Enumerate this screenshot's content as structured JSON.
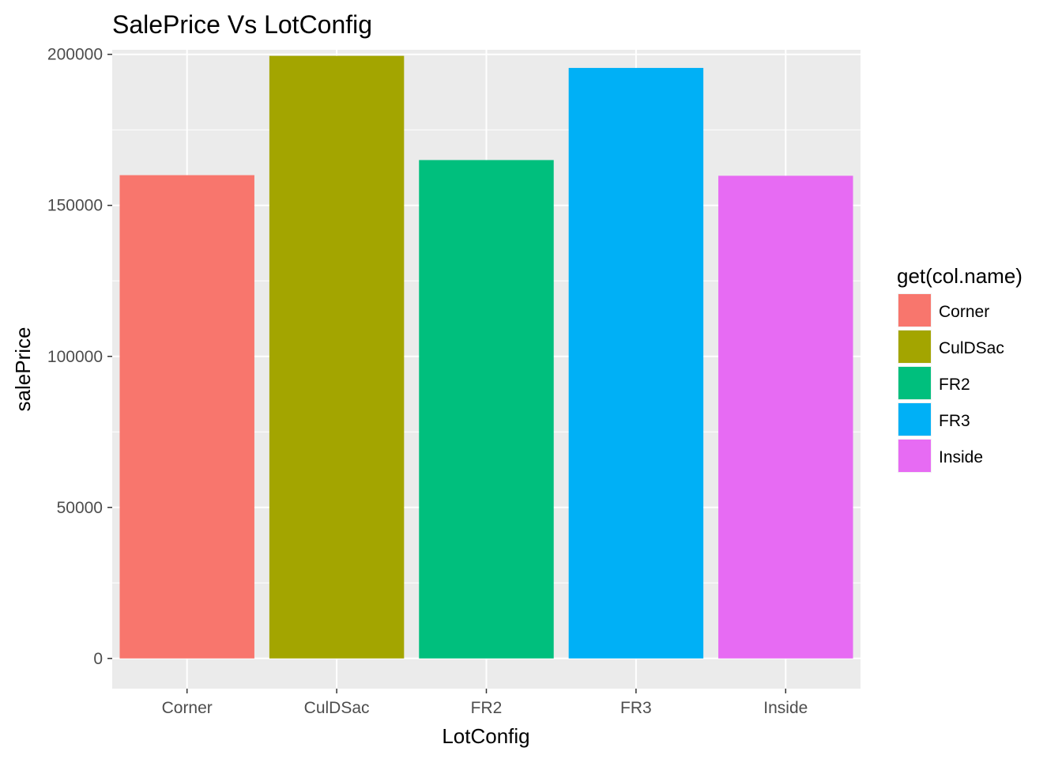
{
  "chart_data": {
    "type": "bar",
    "title": "SalePrice Vs LotConfig",
    "xlabel": "LotConfig",
    "ylabel": "salePrice",
    "categories": [
      "Corner",
      "CulDSac",
      "FR2",
      "FR3",
      "Inside"
    ],
    "values": [
      160000,
      199500,
      165000,
      195500,
      159800
    ],
    "colors": [
      "#F8766D",
      "#A3A500",
      "#00BF7D",
      "#00B0F6",
      "#E76BF3"
    ],
    "ylim": [
      -10000,
      201500
    ],
    "yticks": [
      0,
      50000,
      100000,
      150000,
      200000
    ],
    "ytick_labels": [
      "0",
      "50000",
      "100000",
      "150000",
      "200000"
    ],
    "grid": true,
    "panel_background": "#EBEBEB",
    "legend": {
      "title": "get(col.name)",
      "placement": "right",
      "entries": [
        "Corner",
        "CulDSac",
        "FR2",
        "FR3",
        "Inside"
      ]
    }
  }
}
